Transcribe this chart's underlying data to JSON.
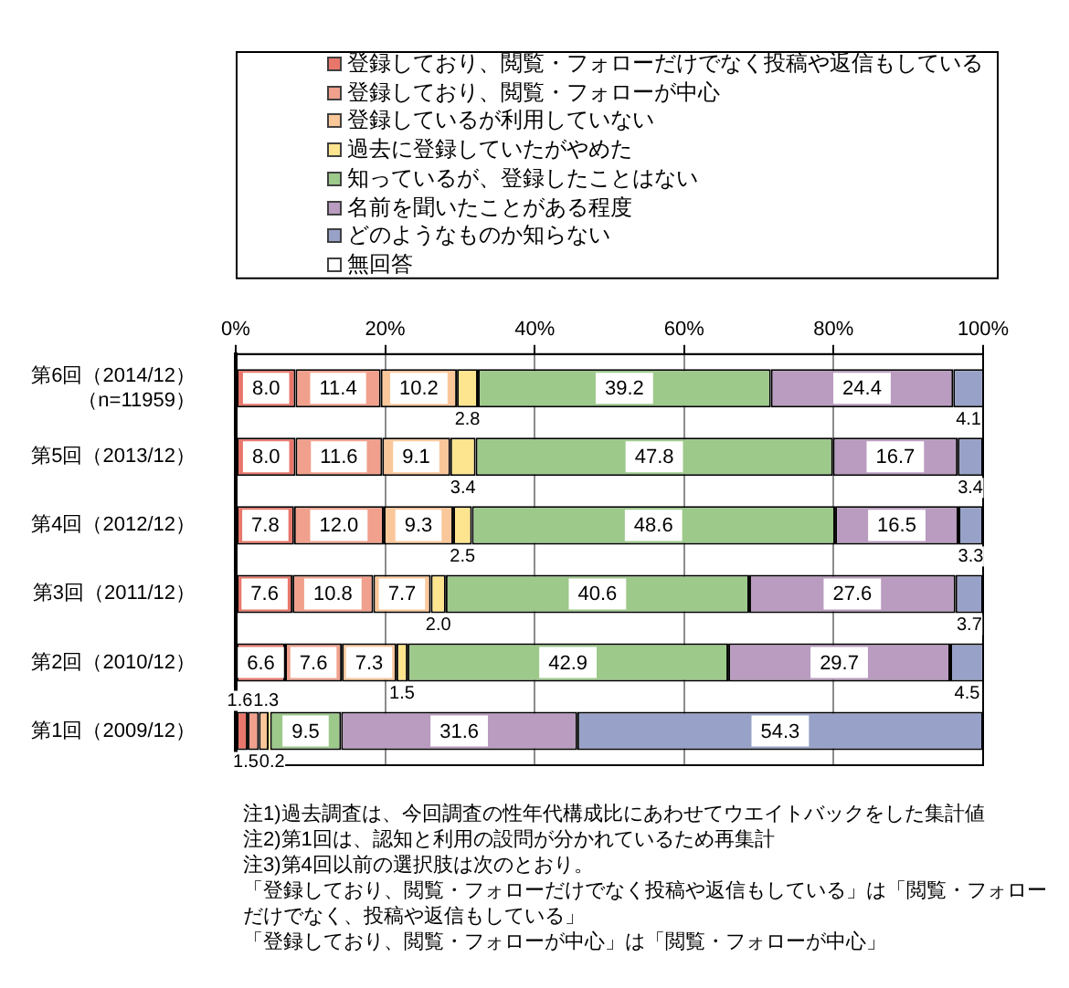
{
  "chart_data": {
    "type": "bar",
    "orientation": "horizontal",
    "stacked": true,
    "categories": [
      "第6回（2014/12）（n=11959）",
      "第5回（2013/12）",
      "第4回（2012/12）",
      "第3回（2011/12）",
      "第2回（2010/12）",
      "第1回（2009/12）"
    ],
    "series": [
      {
        "name": "登録しており、閲覧・フォローだけでなく投稿や返信もしている",
        "color": "#e8766b",
        "values": [
          8.0,
          8.0,
          7.8,
          7.6,
          6.6,
          1.6
        ],
        "value_labels": [
          "8.0",
          "8.0",
          "7.8",
          "7.6",
          "6.6",
          "1.6"
        ]
      },
      {
        "name": "登録しており、閲覧・フォローが中心",
        "color": "#f0a08c",
        "values": [
          11.4,
          11.6,
          12.0,
          10.8,
          7.6,
          1.5
        ],
        "value_labels": [
          "11.4",
          "11.6",
          "12.0",
          "10.8",
          "7.6",
          "1.5"
        ]
      },
      {
        "name": "登録しているが利用していない",
        "color": "#fac79a",
        "values": [
          10.2,
          9.1,
          9.3,
          7.7,
          7.3,
          1.3
        ],
        "value_labels": [
          "10.2",
          "9.1",
          "9.3",
          "7.7",
          "7.3",
          "1.3"
        ]
      },
      {
        "name": "過去に登録していたがやめた",
        "color": "#fde48f",
        "values": [
          2.8,
          3.4,
          2.5,
          2.0,
          1.5,
          0.2
        ],
        "value_labels": [
          "2.8",
          "3.4",
          "2.5",
          "2.0",
          "1.5",
          "0.2"
        ]
      },
      {
        "name": "知っているが、登録したことはない",
        "color": "#9dc98b",
        "values": [
          39.2,
          47.8,
          48.6,
          40.6,
          42.9,
          9.5
        ],
        "value_labels": [
          "39.2",
          "47.8",
          "48.6",
          "40.6",
          "42.9",
          "9.5"
        ]
      },
      {
        "name": "名前を聞いたことがある程度",
        "color": "#b99cbf",
        "values": [
          24.4,
          16.7,
          16.5,
          27.6,
          29.7,
          31.6
        ],
        "value_labels": [
          "24.4",
          "16.7",
          "16.5",
          "27.6",
          "29.7",
          "31.6"
        ]
      },
      {
        "name": "どのようなものか知らない",
        "color": "#98a2c8",
        "values": [
          4.1,
          3.4,
          3.3,
          3.7,
          4.5,
          54.3
        ],
        "value_labels": [
          "4.1",
          "3.4",
          "3.3",
          "3.7",
          "4.5",
          "54.3"
        ]
      },
      {
        "name": "無回答",
        "values": [
          null,
          null,
          null,
          null,
          null,
          null
        ]
      }
    ],
    "xlim": [
      0,
      100
    ],
    "xticks": [
      {
        "value": 0,
        "label": "0%"
      },
      {
        "value": 20,
        "label": "20%"
      },
      {
        "value": 40,
        "label": "40%"
      },
      {
        "value": 60,
        "label": "60%"
      },
      {
        "value": 80,
        "label": "80%"
      },
      {
        "value": 100,
        "label": "100%"
      }
    ],
    "grid": "x",
    "legend": "top",
    "annotations": [
      "注1)過去調査は、今回調査の性年代構成比にあわせてウエイトバックをした集計値",
      "注2)第1回は、認知と利用の設問が分かれているため再集計",
      "注3)第4回以前の選択肢は次のとおり。",
      "「登録しており、閲覧・フォローだけでなく投稿や返信もしている」は「閲覧・フォローだけでなく、投稿や返信もしている」",
      "「登録しており、閲覧・フォローが中心」は「閲覧・フォローが中心」"
    ]
  }
}
